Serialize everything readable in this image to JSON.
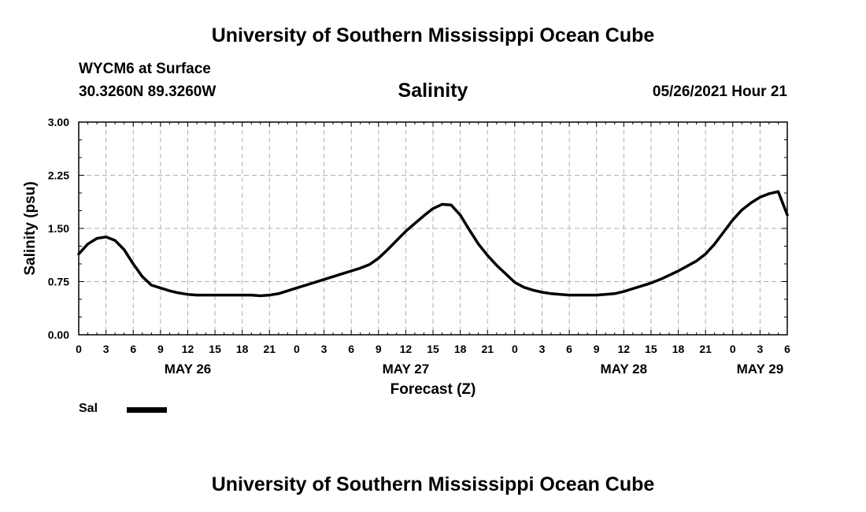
{
  "page": {
    "header_title": "University of Southern Mississippi Ocean Cube",
    "footer_title": "University of Southern Mississippi Ocean Cube",
    "station": "WYCM6 at Surface",
    "coordinates": "30.3260N  89.3260W",
    "timestamp": "05/26/2021 Hour 21"
  },
  "legend": {
    "label": "Sal",
    "color": "#000000"
  },
  "chart_data": {
    "type": "line",
    "title": "Salinity",
    "xlabel": "Forecast (Z)",
    "ylabel": "Salinity (psu)",
    "ylim": [
      0,
      3
    ],
    "yticks": [
      "0.00",
      "0.75",
      "1.50",
      "2.25",
      "3.00"
    ],
    "xlim": [
      0,
      78
    ],
    "xticks": [
      "0",
      "3",
      "6",
      "9",
      "12",
      "15",
      "18",
      "21",
      "0",
      "3",
      "6",
      "9",
      "12",
      "15",
      "18",
      "21",
      "0",
      "3",
      "6",
      "9",
      "12",
      "15",
      "18",
      "21",
      "0",
      "3",
      "6"
    ],
    "day_labels": [
      {
        "label": "MAY 26",
        "at": 12
      },
      {
        "label": "MAY 27",
        "at": 36
      },
      {
        "label": "MAY 28",
        "at": 60
      },
      {
        "label": "MAY 29",
        "at": 75
      }
    ],
    "grid": true,
    "series": [
      {
        "name": "Sal",
        "color": "#000000",
        "x": [
          0,
          1,
          2,
          3,
          4,
          5,
          6,
          7,
          8,
          9,
          10,
          11,
          12,
          13,
          14,
          15,
          16,
          17,
          18,
          19,
          20,
          21,
          22,
          23,
          24,
          25,
          26,
          27,
          28,
          29,
          30,
          31,
          32,
          33,
          34,
          35,
          36,
          37,
          38,
          39,
          40,
          41,
          42,
          43,
          44,
          45,
          46,
          47,
          48,
          49,
          50,
          51,
          52,
          53,
          54,
          55,
          56,
          57,
          58,
          59,
          60,
          61,
          62,
          63,
          64,
          65,
          66,
          67,
          68,
          69,
          70,
          71,
          72,
          73,
          74,
          75,
          76,
          77,
          78
        ],
        "values": [
          1.14,
          1.28,
          1.36,
          1.38,
          1.33,
          1.2,
          1.0,
          0.82,
          0.7,
          0.66,
          0.62,
          0.59,
          0.57,
          0.56,
          0.56,
          0.56,
          0.56,
          0.56,
          0.56,
          0.56,
          0.55,
          0.56,
          0.58,
          0.62,
          0.66,
          0.7,
          0.74,
          0.78,
          0.82,
          0.86,
          0.9,
          0.94,
          0.99,
          1.08,
          1.2,
          1.33,
          1.46,
          1.57,
          1.68,
          1.78,
          1.84,
          1.83,
          1.69,
          1.48,
          1.28,
          1.12,
          0.98,
          0.86,
          0.74,
          0.67,
          0.63,
          0.6,
          0.58,
          0.57,
          0.56,
          0.56,
          0.56,
          0.56,
          0.57,
          0.58,
          0.61,
          0.65,
          0.69,
          0.73,
          0.78,
          0.84,
          0.9,
          0.97,
          1.04,
          1.14,
          1.28,
          1.45,
          1.62,
          1.76,
          1.86,
          1.94,
          1.99,
          2.02,
          1.69
        ]
      }
    ]
  }
}
